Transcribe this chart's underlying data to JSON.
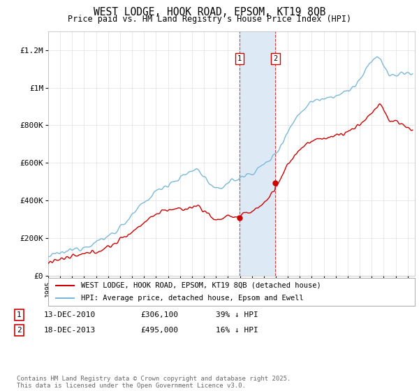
{
  "title": "WEST LODGE, HOOK ROAD, EPSOM, KT19 8QB",
  "subtitle": "Price paid vs. HM Land Registry's House Price Index (HPI)",
  "ylabel_labels": [
    "£0",
    "£200K",
    "£400K",
    "£600K",
    "£800K",
    "£1M",
    "£1.2M"
  ],
  "ylabel_values": [
    0,
    200000,
    400000,
    600000,
    800000,
    1000000,
    1200000
  ],
  "ylim": [
    0,
    1300000
  ],
  "hpi_color": "#7ab8d9",
  "price_color": "#cc0000",
  "sale1_date_label": "13-DEC-2010",
  "sale1_price": 306100,
  "sale1_hpi_pct": "39% ↓ HPI",
  "sale1_year": 2010.96,
  "sale2_date_label": "18-DEC-2013",
  "sale2_price": 495000,
  "sale2_hpi_pct": "16% ↓ HPI",
  "sale2_year": 2013.96,
  "legend_label_property": "WEST LODGE, HOOK ROAD, EPSOM, KT19 8QB (detached house)",
  "legend_label_hpi": "HPI: Average price, detached house, Epsom and Ewell",
  "footnote": "Contains HM Land Registry data © Crown copyright and database right 2025.\nThis data is licensed under the Open Government Licence v3.0.",
  "background_color": "#ffffff",
  "grid_color": "#e0e0e0",
  "shade_color": "#ddeaf5"
}
